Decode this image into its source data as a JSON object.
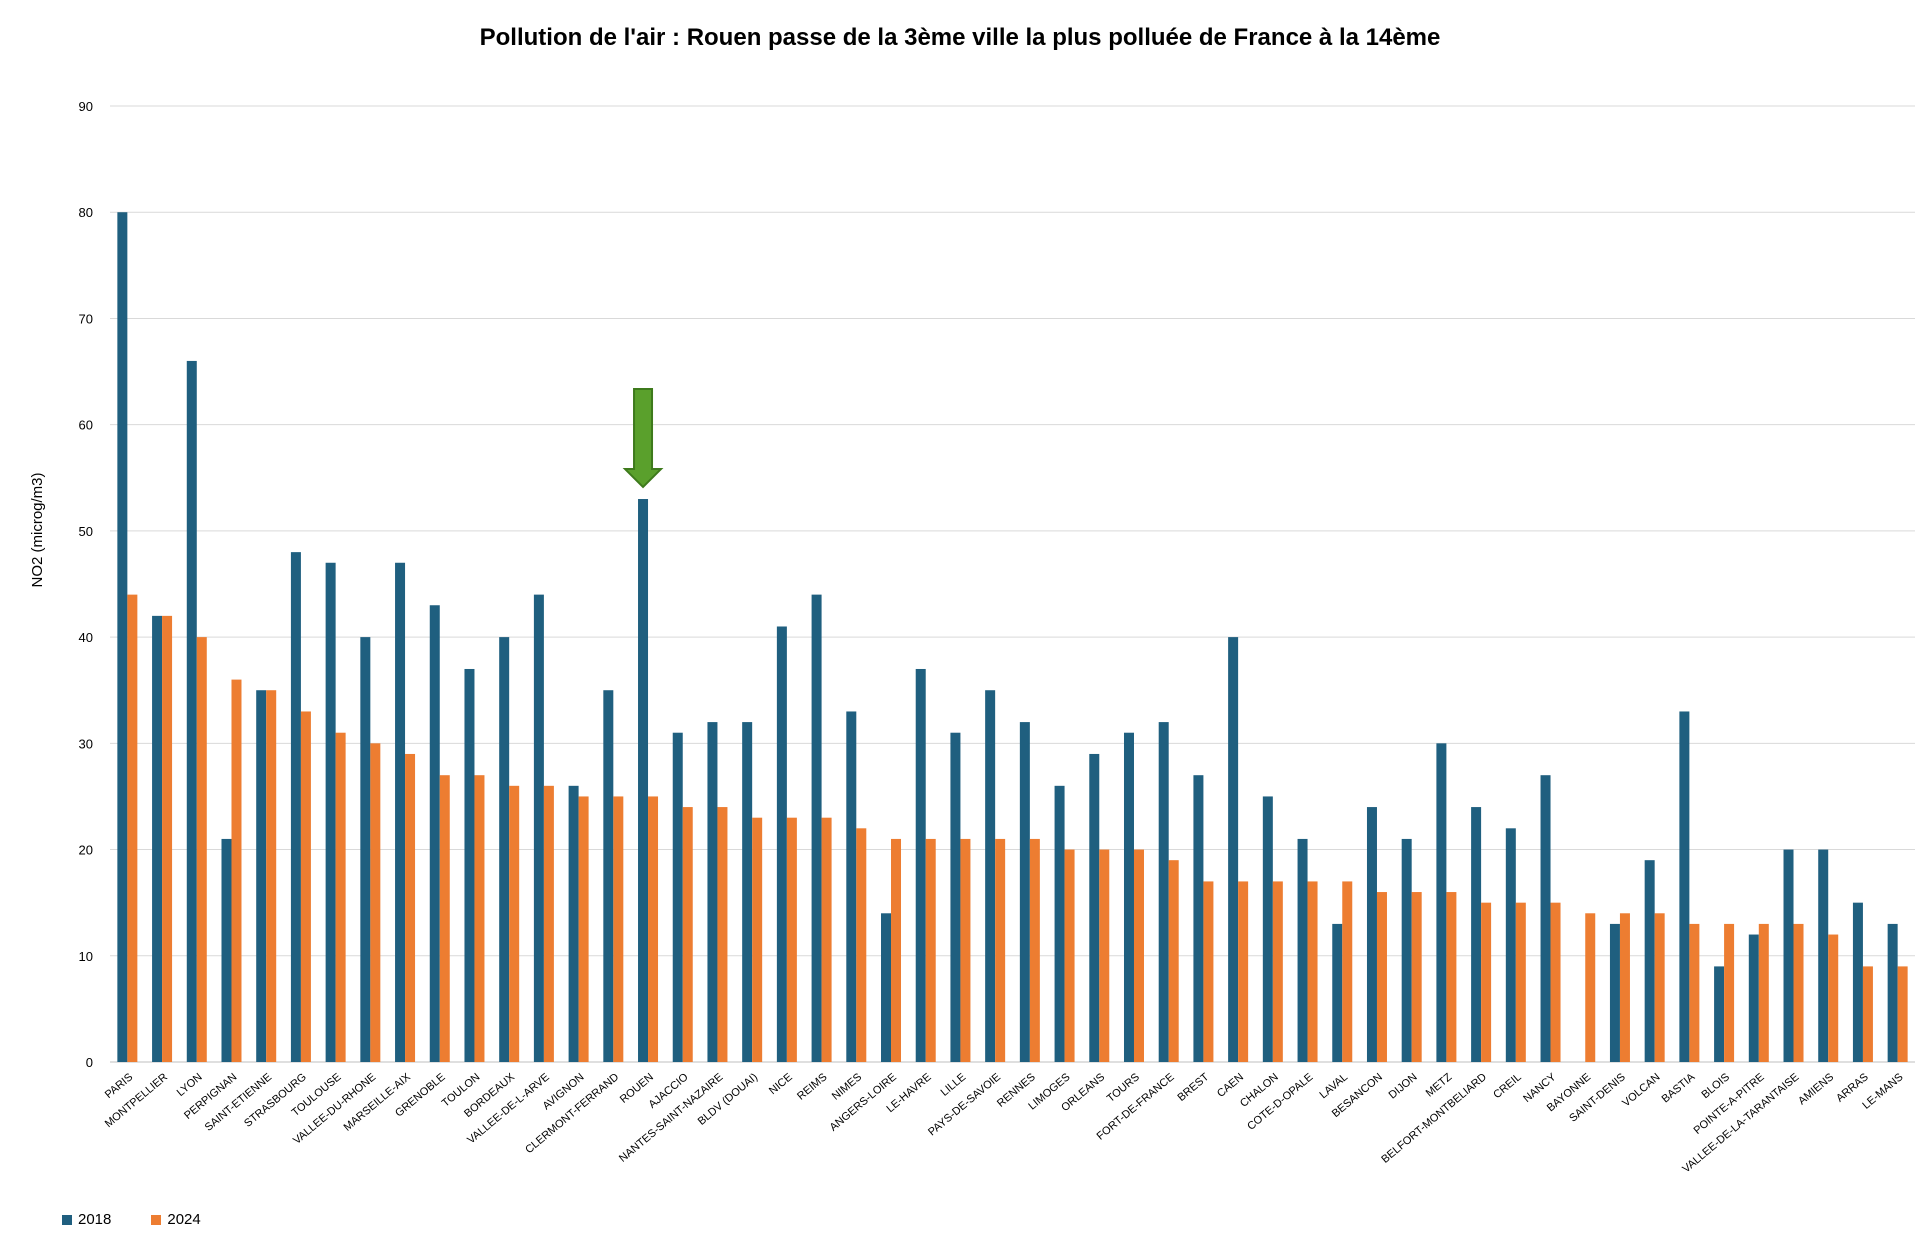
{
  "chart_data": {
    "type": "bar",
    "title": "Pollution de l'air : Rouen passe de la 3ème ville la plus polluée de France à la 14ème",
    "xlabel": "",
    "ylabel": "NO2 (microg/m3)",
    "ylim": [
      0,
      90
    ],
    "yticks": [
      0,
      10,
      20,
      30,
      40,
      50,
      60,
      70,
      80,
      90
    ],
    "grid": true,
    "legend_position": "bottom-left",
    "highlight": {
      "category": "ROUEN",
      "marker": "green-down-arrow",
      "color": "#5aa02c"
    },
    "categories": [
      "PARIS",
      "MONTPELLIER",
      "LYON",
      "PERPIGNAN",
      "SAINT-ETIENNE",
      "STRASBOURG",
      "TOULOUSE",
      "VALLEE-DU-RHONE",
      "MARSEILLE-AIX",
      "GRENOBLE",
      "TOULON",
      "BORDEAUX",
      "VALLEE-DE-L-ARVE",
      "AVIGNON",
      "CLERMONT-FERRAND",
      "ROUEN",
      "AJACCIO",
      "NANTES-SAINT-NAZAIRE",
      "BLDV (DOUAI)",
      "NICE",
      "REIMS",
      "NIMES",
      "ANGERS-LOIRE",
      "LE-HAVRE",
      "LILLE",
      "PAYS-DE-SAVOIE",
      "RENNES",
      "LIMOGES",
      "ORLEANS",
      "TOURS",
      "FORT-DE-FRANCE",
      "BREST",
      "CAEN",
      "CHALON",
      "COTE-D-OPALE",
      "LAVAL",
      "BESANCON",
      "DIJON",
      "METZ",
      "BELFORT-MONTBELIARD",
      "CREIL",
      "NANCY",
      "BAYONNE",
      "SAINT-DENIS",
      "VOLCAN",
      "BASTIA",
      "BLOIS",
      "POINTE-A-PITRE",
      "VALLEE-DE-LA-TARANTAISE",
      "AMIENS",
      "ARRAS",
      "LE-MANS"
    ],
    "series": [
      {
        "name": "2018",
        "color": "#1f5f7f",
        "values": [
          80,
          42,
          66,
          21,
          35,
          48,
          47,
          40,
          47,
          43,
          37,
          40,
          44,
          26,
          35,
          53,
          31,
          32,
          32,
          41,
          44,
          33,
          14,
          37,
          31,
          35,
          32,
          26,
          29,
          31,
          32,
          27,
          40,
          25,
          21,
          13,
          24,
          21,
          30,
          24,
          22,
          27,
          null,
          13,
          19,
          33,
          9,
          12,
          20,
          20,
          15,
          13
        ]
      },
      {
        "name": "2024",
        "color": "#ed7d31",
        "values": [
          44,
          42,
          40,
          36,
          35,
          33,
          31,
          30,
          29,
          27,
          27,
          26,
          26,
          25,
          25,
          25,
          24,
          24,
          23,
          23,
          23,
          22,
          21,
          21,
          21,
          21,
          21,
          20,
          20,
          20,
          19,
          17,
          17,
          17,
          17,
          17,
          16,
          16,
          16,
          15,
          15,
          15,
          14,
          14,
          14,
          13,
          13,
          13,
          13,
          12,
          9,
          9
        ]
      }
    ]
  }
}
